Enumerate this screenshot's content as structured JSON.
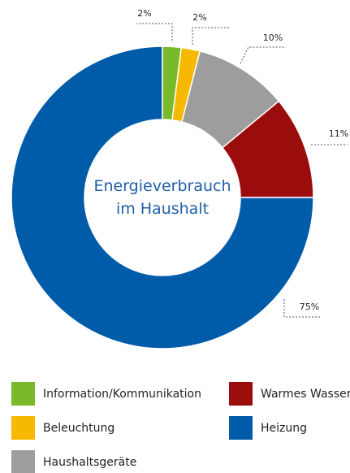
{
  "chart_data": {
    "type": "pie",
    "title": "Energieverbrauch im Haushalt",
    "categories": [
      "Information/Kommunikation",
      "Beleuchtung",
      "Haushaltsgeräte",
      "Warmes Wasser",
      "Heizung"
    ],
    "values": [
      2,
      2,
      10,
      11,
      75
    ],
    "value_labels": [
      "2%",
      "2%",
      "10%",
      "11%",
      "75%"
    ],
    "colors": [
      "#7ab929",
      "#f7b900",
      "#9d9d9d",
      "#9b0c0c",
      "#005ca9"
    ]
  }
}
